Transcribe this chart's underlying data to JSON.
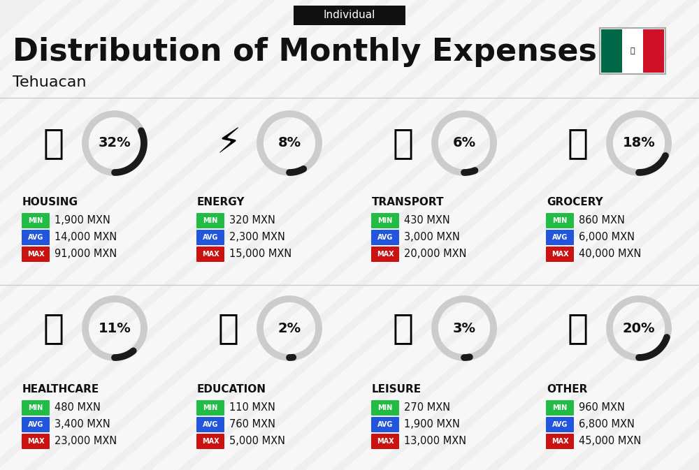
{
  "title": "Distribution of Monthly Expenses",
  "subtitle": "Individual",
  "city": "Tehuacan",
  "bg_color": "#efefef",
  "categories": [
    {
      "name": "HOUSING",
      "pct": 32,
      "min": "1,900 MXN",
      "avg": "14,000 MXN",
      "max": "91,000 MXN",
      "col": 0,
      "row": 0
    },
    {
      "name": "ENERGY",
      "pct": 8,
      "min": "320 MXN",
      "avg": "2,300 MXN",
      "max": "15,000 MXN",
      "col": 1,
      "row": 0
    },
    {
      "name": "TRANSPORT",
      "pct": 6,
      "min": "430 MXN",
      "avg": "3,000 MXN",
      "max": "20,000 MXN",
      "col": 2,
      "row": 0
    },
    {
      "name": "GROCERY",
      "pct": 18,
      "min": "860 MXN",
      "avg": "6,000 MXN",
      "max": "40,000 MXN",
      "col": 3,
      "row": 0
    },
    {
      "name": "HEALTHCARE",
      "pct": 11,
      "min": "480 MXN",
      "avg": "3,400 MXN",
      "max": "23,000 MXN",
      "col": 0,
      "row": 1
    },
    {
      "name": "EDUCATION",
      "pct": 2,
      "min": "110 MXN",
      "avg": "760 MXN",
      "max": "5,000 MXN",
      "col": 1,
      "row": 1
    },
    {
      "name": "LEISURE",
      "pct": 3,
      "min": "270 MXN",
      "avg": "1,900 MXN",
      "max": "13,000 MXN",
      "col": 2,
      "row": 1
    },
    {
      "name": "OTHER",
      "pct": 20,
      "min": "960 MXN",
      "avg": "6,800 MXN",
      "max": "45,000 MXN",
      "col": 3,
      "row": 1
    }
  ],
  "min_color": "#22bb44",
  "avg_color": "#2255dd",
  "max_color": "#cc1111",
  "dark_arc_color": "#1a1a1a",
  "light_arc_color": "#cccccc",
  "text_dark": "#111111",
  "separator_color": "#cccccc",
  "stripe_color": "#e8e8e8",
  "flag_green": "#006847",
  "flag_white": "#ffffff",
  "flag_red": "#ce1126"
}
